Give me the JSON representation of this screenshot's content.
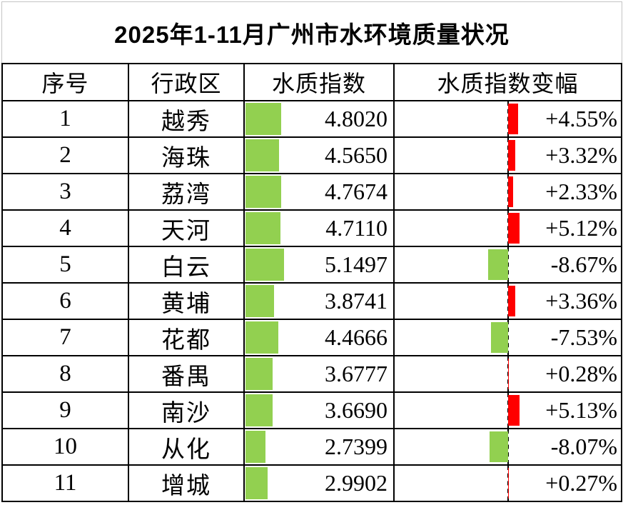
{
  "title": "2025年1-11月广州市水环境质量状况",
  "table": {
    "headers": {
      "num": "序号",
      "district": "行政区",
      "index": "水质指数",
      "change": "水质指数变幅"
    }
  },
  "colors": {
    "border": "#000000",
    "index_bar_green": "#92D050",
    "change_positive_red": "#FF0000",
    "change_negative_green": "#92D050"
  },
  "chart_data": {
    "type": "table",
    "title": "2025年1-11月广州市水环境质量状况",
    "columns": [
      "序号",
      "行政区",
      "水质指数",
      "水质指数变幅"
    ],
    "rows": [
      {
        "num": "1",
        "district": "越秀",
        "index": 4.802,
        "index_display": "4.8020",
        "change": 4.55,
        "change_display": "+4.55%"
      },
      {
        "num": "2",
        "district": "海珠",
        "index": 4.565,
        "index_display": "4.5650",
        "change": 3.32,
        "change_display": "+3.32%"
      },
      {
        "num": "3",
        "district": "荔湾",
        "index": 4.7674,
        "index_display": "4.7674",
        "change": 2.33,
        "change_display": "+2.33%"
      },
      {
        "num": "4",
        "district": "天河",
        "index": 4.711,
        "index_display": "4.7110",
        "change": 5.12,
        "change_display": "+5.12%"
      },
      {
        "num": "5",
        "district": "白云",
        "index": 5.1497,
        "index_display": "5.1497",
        "change": -8.67,
        "change_display": "-8.67%"
      },
      {
        "num": "6",
        "district": "黄埔",
        "index": 3.8741,
        "index_display": "3.8741",
        "change": 3.36,
        "change_display": "+3.36%"
      },
      {
        "num": "7",
        "district": "花都",
        "index": 4.4666,
        "index_display": "4.4666",
        "change": -7.53,
        "change_display": "-7.53%"
      },
      {
        "num": "8",
        "district": "番禺",
        "index": 3.6777,
        "index_display": "3.6777",
        "change": 0.28,
        "change_display": "+0.28%"
      },
      {
        "num": "9",
        "district": "南沙",
        "index": 3.669,
        "index_display": "3.6690",
        "change": 5.13,
        "change_display": "+5.13%"
      },
      {
        "num": "10",
        "district": "从化",
        "index": 2.7399,
        "index_display": "2.7399",
        "change": -8.07,
        "change_display": "-8.07%"
      },
      {
        "num": "11",
        "district": "增城",
        "index": 2.9902,
        "index_display": "2.9902",
        "change": 0.27,
        "change_display": "+0.27%"
      }
    ],
    "index_databar": {
      "scale_min": 0,
      "scale_max": 20,
      "color": "#92D050"
    },
    "change_databar": {
      "scale_min": -50,
      "scale_max": 50,
      "axis": "center-dashed",
      "positive_color": "#FF0000",
      "negative_color": "#92D050"
    }
  }
}
